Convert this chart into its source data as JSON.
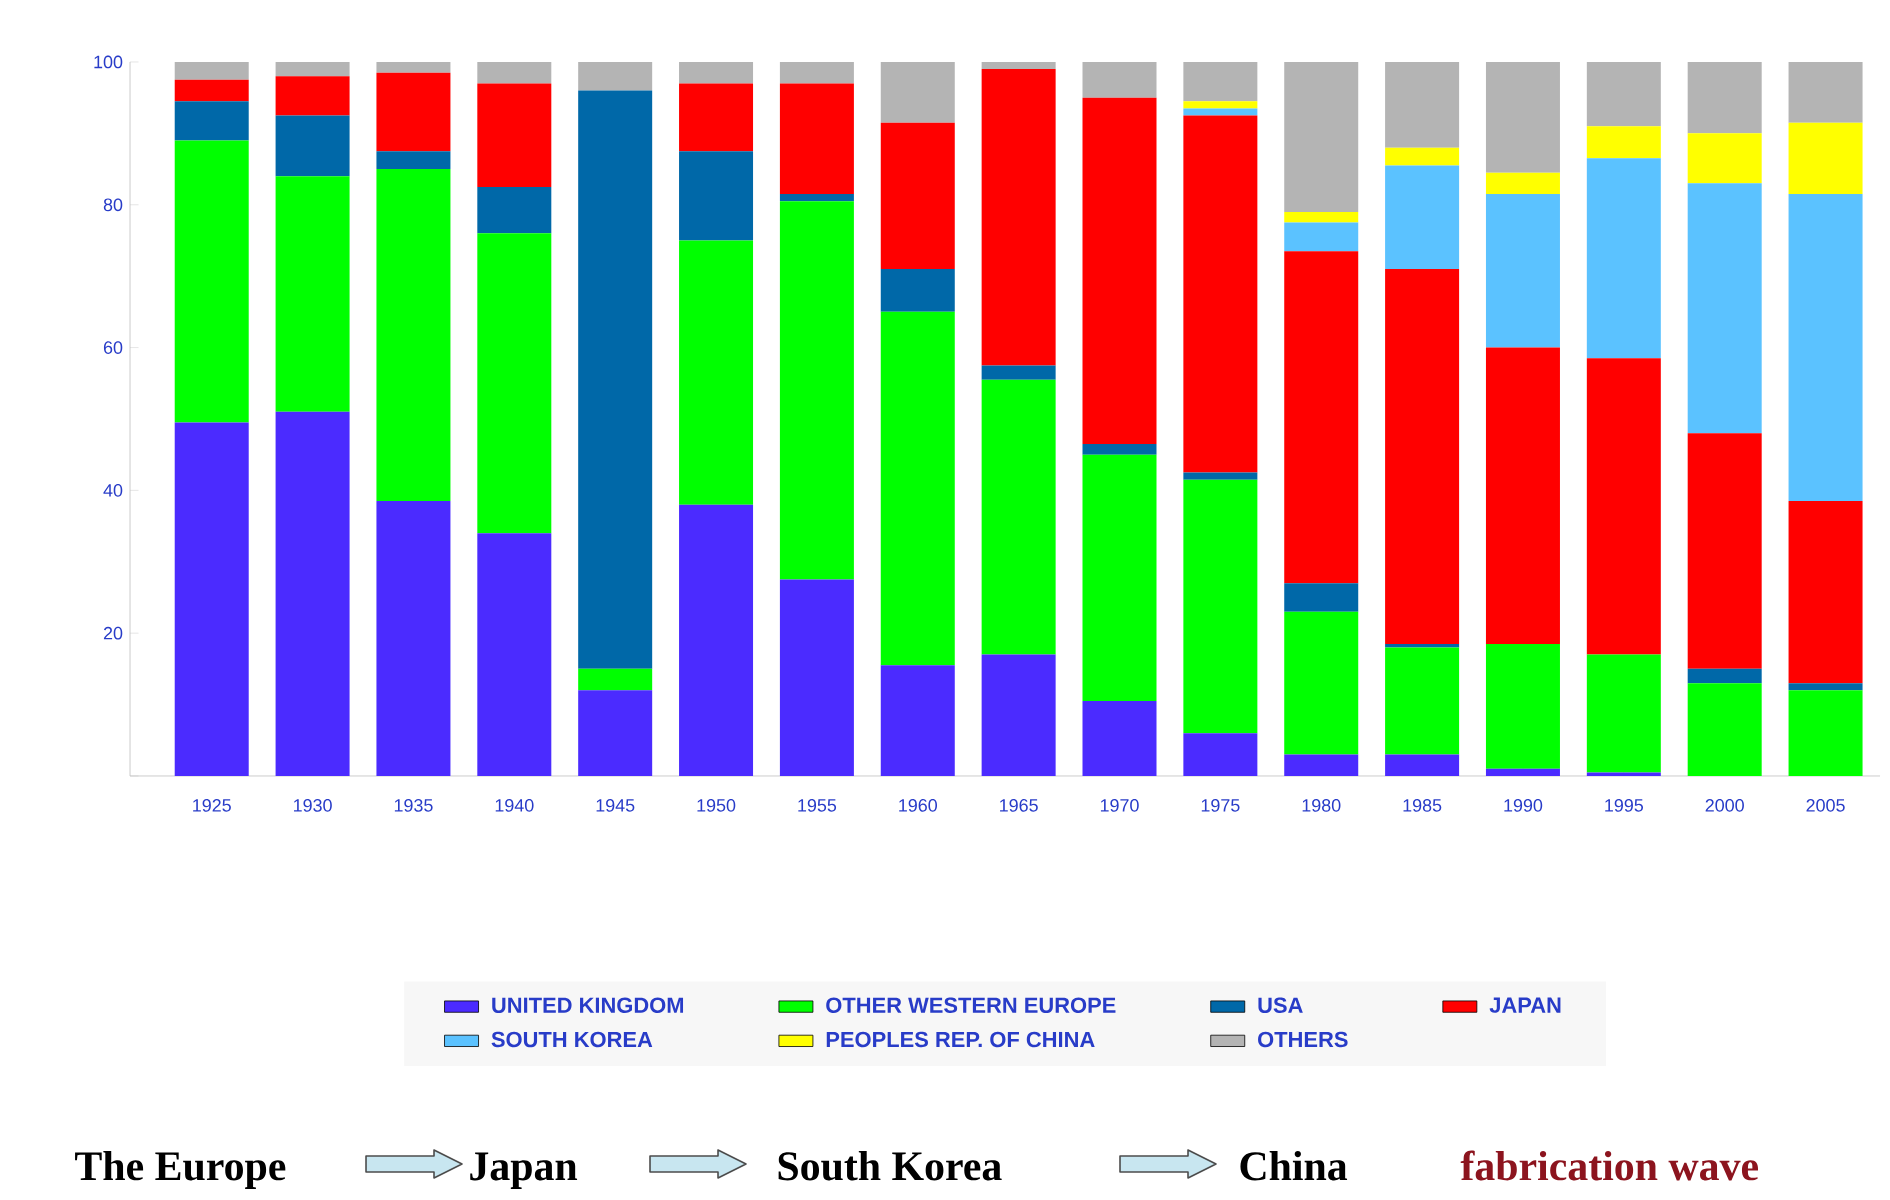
{
  "chart_data": {
    "type": "bar",
    "stacked": true,
    "categories": [
      "1925",
      "1930",
      "1935",
      "1940",
      "1945",
      "1950",
      "1955",
      "1960",
      "1965",
      "1970",
      "1975",
      "1980",
      "1985",
      "1990",
      "1995",
      "2000",
      "2005"
    ],
    "series": [
      {
        "name": "UNITED KINGDOM",
        "color": "#4b2bff",
        "values": [
          49.5,
          51,
          38.5,
          34,
          12,
          38,
          27.5,
          15.5,
          17,
          10.5,
          6,
          3,
          3,
          1,
          0.5,
          0,
          0
        ]
      },
      {
        "name": "OTHER WESTERN EUROPE",
        "color": "#00ff00",
        "values": [
          39.5,
          33,
          46.5,
          42,
          3,
          37,
          53,
          49.5,
          38.5,
          34.5,
          35.5,
          20,
          15,
          17.5,
          16.5,
          13,
          12
        ]
      },
      {
        "name": "USA",
        "color": "#0068a8",
        "values": [
          5.5,
          8.5,
          2.5,
          6.5,
          81,
          12.5,
          1,
          6,
          2,
          1.5,
          1,
          4,
          0.5,
          0,
          0,
          2,
          1
        ]
      },
      {
        "name": "JAPAN",
        "color": "#ff0000",
        "values": [
          3,
          5.5,
          11,
          14.5,
          0,
          9.5,
          15.5,
          20.5,
          41.5,
          48.5,
          50,
          46.5,
          52.5,
          41.5,
          41.5,
          33,
          25.5
        ]
      },
      {
        "name": "SOUTH KOREA",
        "color": "#5bc2ff",
        "values": [
          0,
          0,
          0,
          0,
          0,
          0,
          0,
          0,
          0,
          0,
          1,
          4,
          14.5,
          21.5,
          28,
          35,
          43
        ]
      },
      {
        "name": "PEOPLES REP. OF CHINA",
        "color": "#ffff00",
        "values": [
          0,
          0,
          0,
          0,
          0,
          0,
          0,
          0,
          0,
          0,
          1,
          1.5,
          2.5,
          3,
          4.5,
          7,
          10
        ]
      },
      {
        "name": "OTHERS",
        "color": "#b4b4b4",
        "values": [
          2.5,
          2,
          1.5,
          3,
          4,
          3,
          3,
          8.5,
          1,
          5,
          5.5,
          21,
          12,
          15.5,
          9,
          10,
          8.5
        ]
      }
    ],
    "ylim": [
      0,
      100
    ],
    "yticks": [
      {
        "value": 0,
        "label": null
      },
      20,
      40,
      60,
      80,
      100
    ],
    "legend": "bottom",
    "annotations": [
      "The Europe",
      "Japan",
      "South Korea",
      "China",
      "fabrication wave"
    ]
  }
}
